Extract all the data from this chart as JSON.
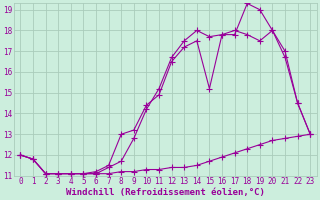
{
  "background_color": "#cceedd",
  "grid_color": "#aaccbb",
  "line_color": "#990099",
  "xlim": [
    -0.5,
    23.5
  ],
  "ylim": [
    11,
    19.3
  ],
  "xticks": [
    0,
    1,
    2,
    3,
    4,
    5,
    6,
    7,
    8,
    9,
    10,
    11,
    12,
    13,
    14,
    15,
    16,
    17,
    18,
    19,
    20,
    21,
    22,
    23
  ],
  "yticks": [
    11,
    12,
    13,
    14,
    15,
    16,
    17,
    18,
    19
  ],
  "xlabel": "Windchill (Refroidissement éolien,°C)",
  "series1_x": [
    0,
    1,
    2,
    3,
    4,
    5,
    6,
    7,
    8,
    9,
    10,
    11,
    12,
    13,
    14,
    15,
    16,
    17,
    18,
    19,
    20,
    21,
    22,
    23
  ],
  "series1_y": [
    12.0,
    11.8,
    11.1,
    11.1,
    11.1,
    11.1,
    11.1,
    11.1,
    11.2,
    11.2,
    11.3,
    11.3,
    11.4,
    11.4,
    11.5,
    11.7,
    11.9,
    12.1,
    12.3,
    12.5,
    12.7,
    12.8,
    12.9,
    13.0
  ],
  "series2_x": [
    0,
    1,
    2,
    3,
    4,
    5,
    6,
    7,
    8,
    9,
    10,
    11,
    12,
    13,
    14,
    15,
    16,
    17,
    18,
    19,
    20,
    21,
    22,
    23
  ],
  "series2_y": [
    12.0,
    11.8,
    11.1,
    11.1,
    11.1,
    11.1,
    11.2,
    11.5,
    13.0,
    13.2,
    14.4,
    14.9,
    16.5,
    17.2,
    17.5,
    15.2,
    17.8,
    18.0,
    17.8,
    17.5,
    18.0,
    16.7,
    14.5,
    13.0
  ],
  "series3_x": [
    0,
    1,
    2,
    3,
    4,
    5,
    6,
    7,
    8,
    9,
    10,
    11,
    12,
    13,
    14,
    15,
    16,
    17,
    18,
    19,
    20,
    21,
    22,
    23
  ],
  "series3_y": [
    12.0,
    11.8,
    11.1,
    11.1,
    11.1,
    11.1,
    11.1,
    11.4,
    11.7,
    12.8,
    14.2,
    15.2,
    16.7,
    17.5,
    18.0,
    17.7,
    17.8,
    17.8,
    19.3,
    19.0,
    18.0,
    17.0,
    14.5,
    13.0
  ],
  "tick_fontsize": 5.5,
  "xlabel_fontsize": 6.5,
  "marker_size": 2.0,
  "line_width": 0.8
}
